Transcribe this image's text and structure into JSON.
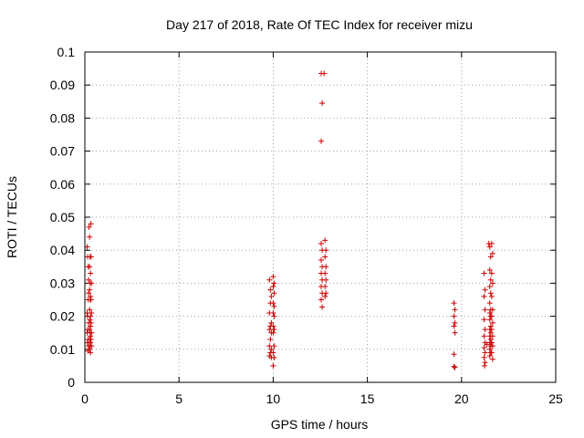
{
  "chart_data": {
    "type": "scatter",
    "title": "Day 217 of 2018, Rate Of TEC Index for receiver mizu",
    "xlabel": "GPS time / hours",
    "ylabel": "ROTI / TECUs",
    "xlim": [
      0,
      25
    ],
    "ylim": [
      0,
      0.1
    ],
    "xticks": [
      "0",
      "5",
      "10",
      "15",
      "20",
      "25"
    ],
    "yticks": [
      "0",
      "0.01",
      "0.02",
      "0.03",
      "0.04",
      "0.05",
      "0.06",
      "0.07",
      "0.08",
      "0.09",
      "0.1"
    ],
    "xtick_values": [
      0,
      5,
      10,
      15,
      20,
      25
    ],
    "ytick_values": [
      0,
      0.01,
      0.02,
      0.03,
      0.04,
      0.05,
      0.06,
      0.07,
      0.08,
      0.09,
      0.1
    ],
    "grid": true,
    "marker": "plus",
    "marker_color": "#cc0000",
    "points": [
      [
        0.12,
        0.041
      ],
      [
        0.15,
        0.038
      ],
      [
        0.18,
        0.035
      ],
      [
        0.2,
        0.031
      ],
      [
        0.2,
        0.027
      ],
      [
        0.18,
        0.025
      ],
      [
        0.12,
        0.021
      ],
      [
        0.15,
        0.02
      ],
      [
        0.2,
        0.018
      ],
      [
        0.16,
        0.016
      ],
      [
        0.12,
        0.015
      ],
      [
        0.18,
        0.013
      ],
      [
        0.14,
        0.012
      ],
      [
        0.2,
        0.011
      ],
      [
        0.16,
        0.0095
      ],
      [
        0.22,
        0.047
      ],
      [
        0.25,
        0.044
      ],
      [
        0.28,
        0.038
      ],
      [
        0.25,
        0.035
      ],
      [
        0.3,
        0.033
      ],
      [
        0.28,
        0.03
      ],
      [
        0.25,
        0.028
      ],
      [
        0.3,
        0.026
      ],
      [
        0.28,
        0.025
      ],
      [
        0.25,
        0.022
      ],
      [
        0.3,
        0.02
      ],
      [
        0.27,
        0.019
      ],
      [
        0.3,
        0.017
      ],
      [
        0.25,
        0.016
      ],
      [
        0.28,
        0.015
      ],
      [
        0.3,
        0.014
      ],
      [
        0.26,
        0.013
      ],
      [
        0.3,
        0.012
      ],
      [
        0.28,
        0.011
      ],
      [
        0.25,
        0.01
      ],
      [
        0.3,
        0.009
      ],
      [
        0.32,
        0.048
      ],
      [
        0.33,
        0.038
      ],
      [
        0.35,
        0.03
      ],
      [
        0.33,
        0.025
      ],
      [
        0.35,
        0.021
      ],
      [
        0.33,
        0.018
      ],
      [
        0.35,
        0.015
      ],
      [
        0.33,
        0.013
      ],
      [
        0.35,
        0.011
      ],
      [
        9.8,
        0.031
      ],
      [
        9.85,
        0.028
      ],
      [
        9.9,
        0.026
      ],
      [
        9.85,
        0.024
      ],
      [
        9.8,
        0.021
      ],
      [
        9.9,
        0.018
      ],
      [
        9.85,
        0.017
      ],
      [
        9.8,
        0.016
      ],
      [
        9.9,
        0.015
      ],
      [
        9.85,
        0.013
      ],
      [
        9.8,
        0.011
      ],
      [
        9.9,
        0.01
      ],
      [
        9.85,
        0.009
      ],
      [
        9.8,
        0.008
      ],
      [
        9.9,
        0.0075
      ],
      [
        10.0,
        0.032
      ],
      [
        10.05,
        0.03
      ],
      [
        10.0,
        0.029
      ],
      [
        10.05,
        0.027
      ],
      [
        10.0,
        0.024
      ],
      [
        10.05,
        0.023
      ],
      [
        10.0,
        0.021
      ],
      [
        10.05,
        0.02
      ],
      [
        10.0,
        0.017
      ],
      [
        10.05,
        0.016
      ],
      [
        10.0,
        0.015
      ],
      [
        10.05,
        0.011
      ],
      [
        10.0,
        0.009
      ],
      [
        10.05,
        0.0075
      ],
      [
        10.0,
        0.005
      ],
      [
        12.55,
        0.0935
      ],
      [
        12.7,
        0.0935
      ],
      [
        12.6,
        0.0845
      ],
      [
        12.55,
        0.073
      ],
      [
        12.55,
        0.042
      ],
      [
        12.6,
        0.04
      ],
      [
        12.55,
        0.037
      ],
      [
        12.6,
        0.035
      ],
      [
        12.55,
        0.033
      ],
      [
        12.6,
        0.031
      ],
      [
        12.55,
        0.029
      ],
      [
        12.6,
        0.027
      ],
      [
        12.55,
        0.025
      ],
      [
        12.6,
        0.0228
      ],
      [
        12.75,
        0.043
      ],
      [
        12.8,
        0.04
      ],
      [
        12.75,
        0.038
      ],
      [
        12.8,
        0.035
      ],
      [
        12.75,
        0.033
      ],
      [
        12.8,
        0.031
      ],
      [
        12.75,
        0.029
      ],
      [
        12.8,
        0.027
      ],
      [
        12.75,
        0.026
      ],
      [
        19.6,
        0.024
      ],
      [
        19.65,
        0.022
      ],
      [
        19.6,
        0.02
      ],
      [
        19.65,
        0.018
      ],
      [
        19.6,
        0.017
      ],
      [
        19.65,
        0.015
      ],
      [
        19.6,
        0.0085
      ],
      [
        19.6,
        0.0048
      ],
      [
        19.65,
        0.0045
      ],
      [
        21.2,
        0.033
      ],
      [
        21.25,
        0.028
      ],
      [
        21.2,
        0.026
      ],
      [
        21.25,
        0.022
      ],
      [
        21.2,
        0.019
      ],
      [
        21.25,
        0.016
      ],
      [
        21.2,
        0.014
      ],
      [
        21.25,
        0.012
      ],
      [
        21.2,
        0.0105
      ],
      [
        21.25,
        0.009
      ],
      [
        21.2,
        0.0075
      ],
      [
        21.25,
        0.006
      ],
      [
        21.22,
        0.005
      ],
      [
        21.35,
        0.0115
      ],
      [
        21.45,
        0.042
      ],
      [
        21.5,
        0.041
      ],
      [
        21.55,
        0.038
      ],
      [
        21.5,
        0.034
      ],
      [
        21.55,
        0.031
      ],
      [
        21.5,
        0.029
      ],
      [
        21.55,
        0.027
      ],
      [
        21.5,
        0.024
      ],
      [
        21.55,
        0.022
      ],
      [
        21.5,
        0.021
      ],
      [
        21.55,
        0.02
      ],
      [
        21.5,
        0.019
      ],
      [
        21.55,
        0.017
      ],
      [
        21.5,
        0.016
      ],
      [
        21.55,
        0.015
      ],
      [
        21.5,
        0.014
      ],
      [
        21.55,
        0.013
      ],
      [
        21.5,
        0.012
      ],
      [
        21.55,
        0.011
      ],
      [
        21.5,
        0.01
      ],
      [
        21.55,
        0.009
      ],
      [
        21.5,
        0.008
      ],
      [
        21.6,
        0.042
      ],
      [
        21.65,
        0.039
      ],
      [
        21.6,
        0.033
      ],
      [
        21.65,
        0.03
      ],
      [
        21.6,
        0.026
      ],
      [
        21.65,
        0.022
      ],
      [
        21.6,
        0.02
      ],
      [
        21.65,
        0.018
      ],
      [
        21.6,
        0.016
      ],
      [
        21.65,
        0.014
      ],
      [
        21.6,
        0.012
      ],
      [
        21.65,
        0.011
      ],
      [
        21.6,
        0.009
      ],
      [
        21.65,
        0.007
      ]
    ]
  }
}
